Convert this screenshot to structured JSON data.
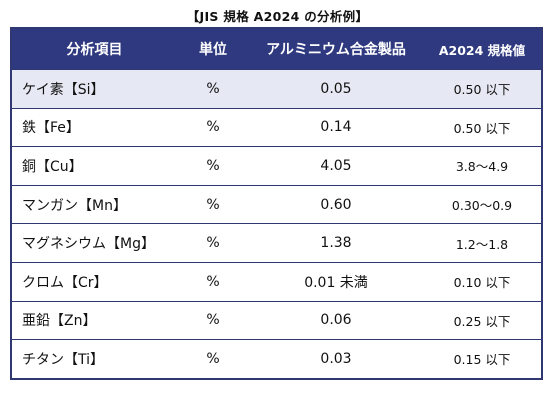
{
  "title": "【JIS 規格 A2024 の分析例】",
  "headers": [
    "分析項目",
    "単位",
    "アルミニウム合金製品",
    "A2024 規格値"
  ],
  "rows": [
    {
      "item": "ケイ素【Si】",
      "unit": "%",
      "value": "0.05",
      "spec": "0.50 以下"
    },
    {
      "item": "鉄【Fe】",
      "unit": "%",
      "value": "0.14",
      "spec": "0.50 以下"
    },
    {
      "item": "銅【Cu】",
      "unit": "%",
      "value": "4.05",
      "spec": "3.8～4.9"
    },
    {
      "item": "マンガン【Mn】",
      "unit": "%",
      "value": "0.60",
      "spec": "0.30～0.9"
    },
    {
      "item": "マグネシウム【Mg】",
      "unit": "%",
      "value": "1.38",
      "spec": "1.2～1.8"
    },
    {
      "item": "クロム【Cr】",
      "unit": "%",
      "value": "0.01 未満",
      "spec": "0.10 以下"
    },
    {
      "item": "亜鉛【Zn】",
      "unit": "%",
      "value": "0.06",
      "spec": "0.25 以下"
    },
    {
      "item": "チタン【Ti】",
      "unit": "%",
      "value": "0.03",
      "spec": "0.15 以下"
    }
  ],
  "colors": {
    "header_bg": "#2f3980",
    "border": "#2f3873",
    "first_row_bg": "#e6e9f3"
  }
}
